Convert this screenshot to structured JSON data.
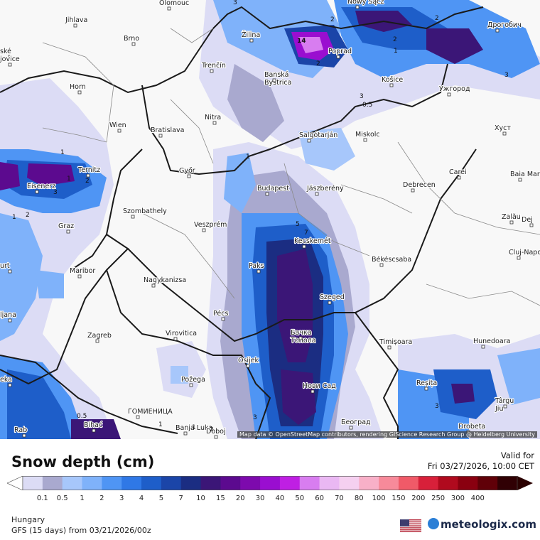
{
  "map": {
    "attribution": "Map data © OpenStreetMap contributors, rendering GIScience Research Group @ Heidelberg University",
    "cities": [
      {
        "name": "Olomouc"
      },
      {
        "name": "Jihlava"
      },
      {
        "name": "Brno"
      },
      {
        "name": "ské"
      },
      {
        "name": "jovice"
      },
      {
        "name": "Horn"
      },
      {
        "name": "Trenčín"
      },
      {
        "name": "Žilina"
      },
      {
        "name": "Nowy Sącz"
      },
      {
        "name": "Дрогобич"
      },
      {
        "name": "Poprad"
      },
      {
        "name": "Banská Bystrica"
      },
      {
        "name": "Košice"
      },
      {
        "name": "Ужгород"
      },
      {
        "name": "Wien"
      },
      {
        "name": "Bratislava"
      },
      {
        "name": "Nitra"
      },
      {
        "name": "Salgótarján"
      },
      {
        "name": "Miskolc"
      },
      {
        "name": "Хуст"
      },
      {
        "name": "Ternitz"
      },
      {
        "name": "Eisenerz"
      },
      {
        "name": "Győr"
      },
      {
        "name": "Budapest"
      },
      {
        "name": "Jászberény"
      },
      {
        "name": "Debrecen"
      },
      {
        "name": "Carei"
      },
      {
        "name": "Baia Mare"
      },
      {
        "name": "Szombathely"
      },
      {
        "name": "Graz"
      },
      {
        "name": "Veszprém"
      },
      {
        "name": "Zalău"
      },
      {
        "name": "Dej"
      },
      {
        "name": "Kecskemét"
      },
      {
        "name": "Cluj-Napoca"
      },
      {
        "name": "Maribor"
      },
      {
        "name": "Paks"
      },
      {
        "name": "Békéscsaba"
      },
      {
        "name": "urt"
      },
      {
        "name": "Nagykanizsa"
      },
      {
        "name": "ljana"
      },
      {
        "name": "Pécs"
      },
      {
        "name": "Szeged"
      },
      {
        "name": "Zagreb"
      },
      {
        "name": "Virovitica"
      },
      {
        "name": "Бачка Топола"
      },
      {
        "name": "Timișoara"
      },
      {
        "name": "Hunedoara"
      },
      {
        "name": "Osijek"
      },
      {
        "name": "Požega"
      },
      {
        "name": "Reșița"
      },
      {
        "name": "Târgu Jiu"
      },
      {
        "name": "Нови Сад"
      },
      {
        "name": "eka"
      },
      {
        "name": "Bihać"
      },
      {
        "name": "ГОМИЕНИЦА"
      },
      {
        "name": "Banja Luka"
      },
      {
        "name": "Doboj"
      },
      {
        "name": "Београд"
      },
      {
        "name": "Drobeta"
      },
      {
        "name": "Rab"
      }
    ],
    "contour_labels": [
      "3",
      "2",
      "2",
      "1",
      "2",
      "2",
      "3",
      "3",
      "0.5",
      "14",
      "1",
      "1",
      "1",
      "2",
      "1",
      "2",
      "3",
      "5",
      "7",
      "0.5",
      "1",
      "1",
      "2",
      "3",
      "3"
    ]
  },
  "legend": {
    "title": "Snow depth (cm)",
    "valid_label": "Valid for",
    "valid_time": "Fri 03/27/2026, 10:00 CET",
    "ticks": [
      "0.1",
      "0.5",
      "1",
      "2",
      "3",
      "4",
      "5",
      "7",
      "10",
      "15",
      "20",
      "30",
      "40",
      "50",
      "60",
      "70",
      "80",
      "100",
      "150",
      "200",
      "250",
      "300",
      "400"
    ],
    "colors": [
      "#dcdcf5",
      "#a9a9cf",
      "#a7c7fb",
      "#7fb2fa",
      "#4f95f4",
      "#2f78e6",
      "#1e5ec9",
      "#1b45a8",
      "#1b2d82",
      "#3b1677",
      "#5c0a8f",
      "#7d0aad",
      "#9a0ed0",
      "#bf1fe3",
      "#d87df0",
      "#eab8f3",
      "#f5d0f0",
      "#f8b0c8",
      "#f78a9a",
      "#f05a68",
      "#d8203a",
      "#b00a1e",
      "#8a0010",
      "#600008",
      "#300004"
    ],
    "region": "Hungary",
    "model": "GFS (15 days) from",
    "run": "03/21/2026/00z",
    "brand": "meteologix.com"
  }
}
